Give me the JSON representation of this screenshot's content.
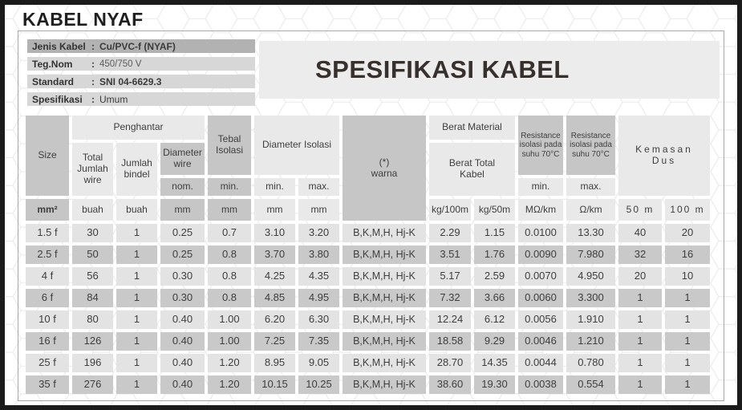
{
  "title": "KABEL NYAF",
  "spec_header": "SPESIFIKASI KABEL",
  "info_rows": [
    {
      "label": "Jenis Kabel",
      "colon": ":",
      "value": "Cu/PVC-f (NYAF)"
    },
    {
      "label": "Teg.Nom",
      "colon": ":",
      "value": "450/750 V"
    },
    {
      "label": "Standard",
      "colon": ":",
      "value": "SNI 04-6629.3"
    },
    {
      "label": "Spesifikasi",
      "colon": ":",
      "value": "Umum"
    }
  ],
  "table": {
    "headers": {
      "size": "Size",
      "penghantar": "Penghantar",
      "total_jumlah_wire": "Total\nJumlah\nwire",
      "jumlah_bindel": "Jumlah\nbindel",
      "diameter_wire": "Diameter\nwire",
      "diameter_wire_nom": "nom.",
      "tebal_isolasi": "Tebal\nIsolasi",
      "tebal_isolasi_min": "min.",
      "diameter_isolasi": "Diameter Isolasi",
      "diameter_isolasi_min": "min.",
      "diameter_isolasi_max": "max.",
      "warna": "(*)\nwarna",
      "berat_material": "Berat Material",
      "berat_total_kabel": "Berat Total\nKabel",
      "resistance_min": "Resistance\nisolasi pada\nsuhu 70°C",
      "resistance_min_label": "min.",
      "resistance_max": "Resistance\nisolasi pada\nsuhu 70°C",
      "resistance_max_label": "max.",
      "kemasan_dus": "Kemasan\nDus"
    },
    "units": {
      "size": "mm²",
      "total_jumlah_wire": "buah",
      "jumlah_bindel": "buah",
      "diameter_wire": "mm",
      "tebal_isolasi": "mm",
      "diameter_isolasi_min": "mm",
      "diameter_isolasi_max": "mm",
      "berat_kg_100m": "kg/100m",
      "berat_kg_50m": "kg/50m",
      "resistance_min": "MΩ/km",
      "resistance_max": "Ω/km",
      "dus_50m": "50 m",
      "dus_100m": "100 m"
    },
    "rows": [
      [
        "1.5 f",
        "30",
        "1",
        "0.25",
        "0.7",
        "3.10",
        "3.20",
        "B,K,M,H, Hj-K",
        "2.29",
        "1.15",
        "0.0100",
        "13.30",
        "40",
        "20"
      ],
      [
        "2.5 f",
        "50",
        "1",
        "0.25",
        "0.8",
        "3.70",
        "3.80",
        "B,K,M,H, Hj-K",
        "3.51",
        "1.76",
        "0.0090",
        "7.980",
        "32",
        "16"
      ],
      [
        "4 f",
        "56",
        "1",
        "0.30",
        "0.8",
        "4.25",
        "4.35",
        "B,K,M,H, Hj-K",
        "5.17",
        "2.59",
        "0.0070",
        "4.950",
        "20",
        "10"
      ],
      [
        "6 f",
        "84",
        "1",
        "0.30",
        "0.8",
        "4.85",
        "4.95",
        "B,K,M,H, Hj-K",
        "7.32",
        "3.66",
        "0.0060",
        "3.300",
        "1",
        "1"
      ],
      [
        "10 f",
        "80",
        "1",
        "0.40",
        "1.00",
        "6.20",
        "6.30",
        "B,K,M,H, Hj-K",
        "12.24",
        "6.12",
        "0.0056",
        "1.910",
        "1",
        "1"
      ],
      [
        "16 f",
        "126",
        "1",
        "0.40",
        "1.00",
        "7.25",
        "7.35",
        "B,K,M,H, Hj-K",
        "18.58",
        "9.29",
        "0.0046",
        "1.210",
        "1",
        "1"
      ],
      [
        "25 f",
        "196",
        "1",
        "0.40",
        "1.20",
        "8.95",
        "9.05",
        "B,K,M,H, Hj-K",
        "28.70",
        "14.35",
        "0.0044",
        "0.780",
        "1",
        "1"
      ],
      [
        "35 f",
        "276",
        "1",
        "0.40",
        "1.20",
        "10.15",
        "10.25",
        "B,K,M,H, Hj-K",
        "38.60",
        "19.30",
        "0.0038",
        "0.554",
        "1",
        "1"
      ]
    ]
  },
  "colors": {
    "frame": "#1b1b1b",
    "header_cell_dark": "#c6c6c6",
    "header_cell_light": "#e9e9e9",
    "row_light": "#e3e3e3",
    "row_dark": "#c9c9c9",
    "info_row_first": "#b2b2b2",
    "info_row_rest": "#d7d7d7",
    "spec_header_box": "#ececec",
    "text": "#3e3e3e"
  }
}
